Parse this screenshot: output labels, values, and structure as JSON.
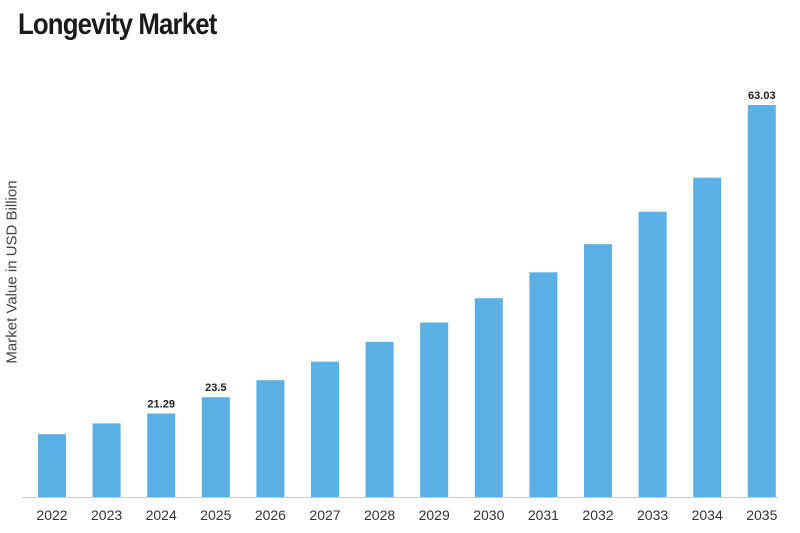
{
  "chart_data": {
    "type": "bar",
    "title": "Longevity Market",
    "xlabel": "",
    "ylabel": "Market Value in USD Billion",
    "categories": [
      "2022",
      "2023",
      "2024",
      "2025",
      "2026",
      "2027",
      "2028",
      "2029",
      "2030",
      "2031",
      "2032",
      "2033",
      "2034",
      "2035"
    ],
    "values": [
      18.5,
      19.95,
      21.29,
      23.5,
      25.8,
      28.3,
      31.0,
      33.6,
      36.9,
      40.4,
      44.2,
      48.6,
      53.2,
      63.03
    ],
    "data_labels": [
      "",
      "",
      "21.29",
      "23.5",
      "",
      "",
      "",
      "",
      "",
      "",
      "",
      "",
      "",
      "63.03"
    ],
    "ylim": [
      10,
      63.03
    ],
    "bar_color": "#5aafe4",
    "grid": false,
    "legend": "none"
  }
}
